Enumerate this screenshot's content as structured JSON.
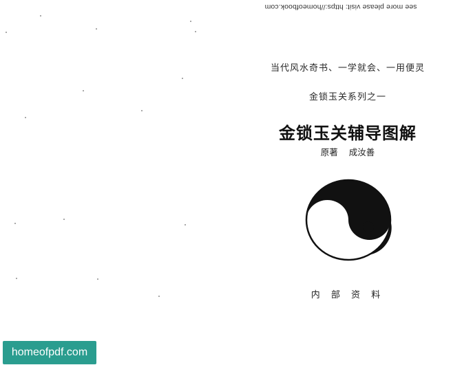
{
  "header": {
    "url_note": "see more please visit: https://homeofbook.com"
  },
  "cover": {
    "slogan": "当代风水奇书、一学就会、一用便灵",
    "series": "金锁玉关系列之一",
    "title": "金锁玉关辅导图解",
    "author_role": "原著",
    "author_name": "成汝善",
    "internal_label": "内 部 资 料",
    "emblem_icon": "yin-yang-icon"
  },
  "watermark": {
    "label": "homeofpdf.com",
    "color": "#2a9d8f"
  }
}
